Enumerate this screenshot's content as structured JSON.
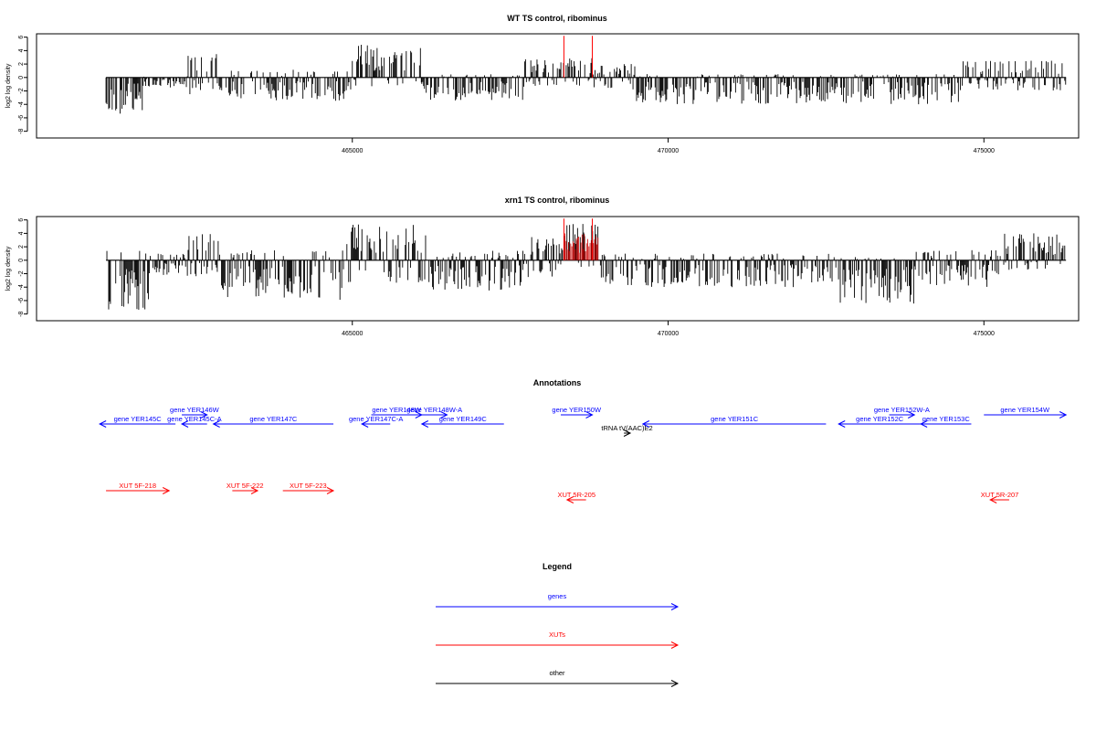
{
  "colors": {
    "gene": "#0000ff",
    "xut": "#ff0000",
    "other": "#000000",
    "axis": "#000000",
    "bar": "#000000"
  },
  "chart_data": [
    {
      "type": "bar",
      "title": "WT TS control, ribominus",
      "ylabel": "log2 log density",
      "xlim": [
        460000,
        476500
      ],
      "ylim": [
        -9,
        6.5
      ],
      "yticks": [
        "6",
        "4",
        "2",
        "0",
        "-2",
        "-4",
        "-6",
        "-8"
      ],
      "xticks": [
        "465000",
        "470000",
        "475000"
      ],
      "xtick_values": [
        465000,
        470000,
        475000
      ],
      "baseline_range": [
        461100,
        476300
      ],
      "series_description": "dense per-position log2 density bars along chromosome coordinate",
      "profile": [
        {
          "x0": 461100,
          "x1": 461700,
          "low": -5.5,
          "high": 0
        },
        {
          "x0": 461700,
          "x1": 462400,
          "low": -1.5,
          "high": 0.3
        },
        {
          "x0": 462400,
          "x1": 463000,
          "low": -2.5,
          "high": 3.5
        },
        {
          "x0": 463000,
          "x1": 465000,
          "low": -3.5,
          "high": 1.2
        },
        {
          "x0": 465000,
          "x1": 466100,
          "low": -1.5,
          "high": 5
        },
        {
          "x0": 466100,
          "x1": 467700,
          "low": -3.5,
          "high": 0.5
        },
        {
          "x0": 467700,
          "x1": 468800,
          "low": -1.5,
          "high": 3
        },
        {
          "x0": 468800,
          "x1": 469500,
          "low": -2,
          "high": 2
        },
        {
          "x0": 469500,
          "x1": 474600,
          "low": -4,
          "high": 0.5
        },
        {
          "x0": 474600,
          "x1": 476300,
          "low": -2,
          "high": 2.5
        }
      ],
      "red_markers": [
        468350,
        468800
      ]
    },
    {
      "type": "bar",
      "title": "xrn1 TS control, ribominus",
      "ylabel": "log2 log density",
      "xlim": [
        460000,
        476500
      ],
      "ylim": [
        -9,
        6.5
      ],
      "yticks": [
        "6",
        "4",
        "2",
        "0",
        "-2",
        "-4",
        "-6",
        "-8"
      ],
      "xticks": [
        "465000",
        "470000",
        "475000"
      ],
      "xtick_values": [
        465000,
        470000,
        475000
      ],
      "baseline_range": [
        461100,
        476300
      ],
      "series_description": "dense per-position log2 density bars along chromosome coordinate",
      "profile": [
        {
          "x0": 461100,
          "x1": 461800,
          "low": -7.5,
          "high": 1.5
        },
        {
          "x0": 461800,
          "x1": 462400,
          "low": -2.5,
          "high": 1
        },
        {
          "x0": 462400,
          "x1": 462900,
          "low": -2.5,
          "high": 4
        },
        {
          "x0": 462900,
          "x1": 464900,
          "low": -6,
          "high": 1.5
        },
        {
          "x0": 464900,
          "x1": 466200,
          "low": -3.5,
          "high": 5.5
        },
        {
          "x0": 466200,
          "x1": 467700,
          "low": -4.5,
          "high": 1.5
        },
        {
          "x0": 467700,
          "x1": 468300,
          "low": -2.5,
          "high": 3.5
        },
        {
          "x0": 468300,
          "x1": 468900,
          "low": -2,
          "high": 5.5
        },
        {
          "x0": 468900,
          "x1": 472600,
          "low": -4,
          "high": 1
        },
        {
          "x0": 472600,
          "x1": 473900,
          "low": -6.5,
          "high": 0.5
        },
        {
          "x0": 473900,
          "x1": 475300,
          "low": -4,
          "high": 1.5
        },
        {
          "x0": 475300,
          "x1": 476300,
          "low": -1.5,
          "high": 4
        }
      ],
      "red_markers": [
        468350,
        468800
      ],
      "red_band": [
        468350,
        468900
      ]
    }
  ],
  "annotations": {
    "title": "Annotations",
    "items": [
      {
        "label": "gene YER145C",
        "type": "gene",
        "dir": "left",
        "x1": 461000,
        "x2": 462200,
        "row": 2
      },
      {
        "label": "gene YER146W",
        "type": "gene",
        "dir": "right",
        "x1": 462300,
        "x2": 462700,
        "row": 1
      },
      {
        "label": "gene YER145C-A",
        "type": "gene",
        "dir": "left",
        "x1": 462300,
        "x2": 462700,
        "row": 2
      },
      {
        "label": "gene YER147C",
        "type": "gene",
        "dir": "left",
        "x1": 462800,
        "x2": 464700,
        "row": 2
      },
      {
        "label": "gene YER147C-A",
        "type": "gene",
        "dir": "left",
        "x1": 465150,
        "x2": 465600,
        "row": 2
      },
      {
        "label": "gene YER148W",
        "type": "gene",
        "dir": "right",
        "x1": 465300,
        "x2": 466100,
        "row": 1
      },
      {
        "label": "gene YER148W-A",
        "type": "gene",
        "dir": "right",
        "x1": 466100,
        "x2": 466500,
        "row": 1
      },
      {
        "label": "gene YER149C",
        "type": "gene",
        "dir": "left",
        "x1": 466100,
        "x2": 467400,
        "row": 2
      },
      {
        "label": "gene YER150W",
        "type": "gene",
        "dir": "right",
        "x1": 468300,
        "x2": 468800,
        "row": 1
      },
      {
        "label": "tRNA tV(AAC)E2",
        "type": "other",
        "dir": "right",
        "x1": 469300,
        "x2": 469400,
        "row": 3
      },
      {
        "label": "gene YER151C",
        "type": "gene",
        "dir": "left",
        "x1": 469600,
        "x2": 472500,
        "row": 2
      },
      {
        "label": "gene YER152C",
        "type": "gene",
        "dir": "left",
        "x1": 472700,
        "x2": 474000,
        "row": 2
      },
      {
        "label": "gene YER152W-A",
        "type": "gene",
        "dir": "right",
        "x1": 473500,
        "x2": 473900,
        "row": 1
      },
      {
        "label": "gene YER153C",
        "type": "gene",
        "dir": "left",
        "x1": 474000,
        "x2": 474800,
        "row": 2
      },
      {
        "label": "gene YER154W",
        "type": "gene",
        "dir": "right",
        "x1": 475000,
        "x2": 476300,
        "row": 1
      },
      {
        "label": "XUT 5F-218",
        "type": "xut",
        "dir": "right",
        "x1": 461100,
        "x2": 462100,
        "row": 4
      },
      {
        "label": "XUT 5F-222",
        "type": "xut",
        "dir": "right",
        "x1": 463100,
        "x2": 463500,
        "row": 4
      },
      {
        "label": "XUT 5F-223",
        "type": "xut",
        "dir": "right",
        "x1": 463900,
        "x2": 464700,
        "row": 4
      },
      {
        "label": "XUT 5R-205",
        "type": "xut",
        "dir": "left",
        "x1": 468400,
        "x2": 468700,
        "row": 5
      },
      {
        "label": "XUT 5R-207",
        "type": "xut",
        "dir": "left",
        "x1": 475100,
        "x2": 475400,
        "row": 5
      }
    ]
  },
  "legend": {
    "title": "Legend",
    "entries": [
      {
        "label": "genes",
        "type": "gene"
      },
      {
        "label": "XUTs",
        "type": "xut"
      },
      {
        "label": "other",
        "type": "other"
      }
    ]
  }
}
